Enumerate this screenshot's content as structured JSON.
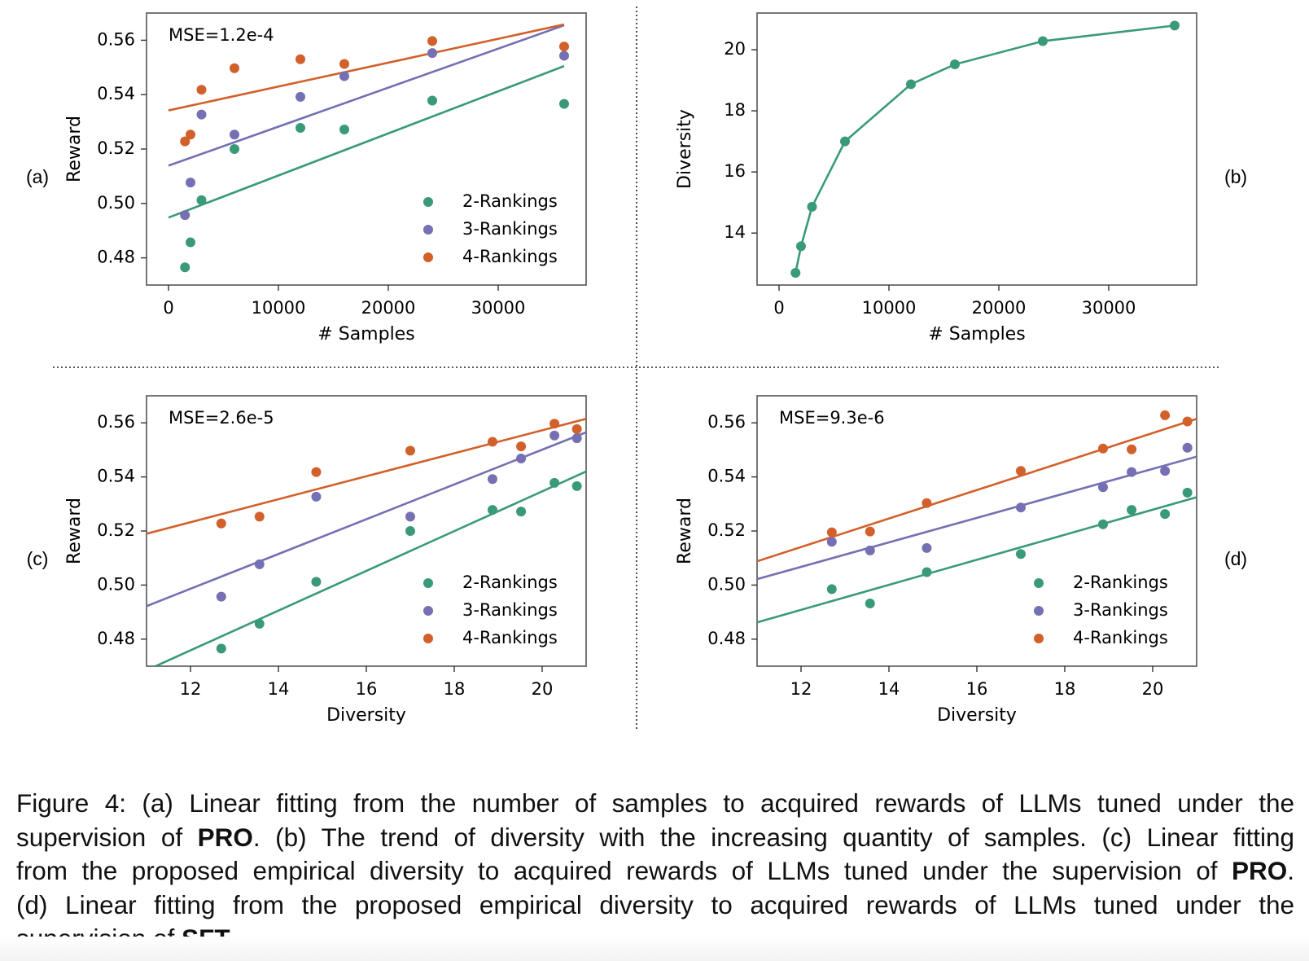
{
  "colors": {
    "green": "#3a9a78",
    "purple": "#7570b3",
    "orange": "#d2602a",
    "frame": "#555555"
  },
  "panel_labels": {
    "a": "(a)",
    "b": "(b)",
    "c": "(c)",
    "d": "(d)"
  },
  "chart_data": [
    {
      "id": "a",
      "type": "scatter",
      "annotation": "MSE=1.2e-4",
      "xlabel": "# Samples",
      "ylabel": "Reward",
      "xlim": [
        -2000,
        38000
      ],
      "ylim": [
        0.47,
        0.57
      ],
      "xticks": [
        0,
        10000,
        20000,
        30000
      ],
      "xtick_labels": [
        "0",
        "10000",
        "20000",
        "30000"
      ],
      "yticks": [
        0.48,
        0.5,
        0.52,
        0.54,
        0.56
      ],
      "ytick_labels": [
        "0.48",
        "0.50",
        "0.52",
        "0.54",
        "0.56"
      ],
      "legend_position": "lower right",
      "series": [
        {
          "name": "2-Rankings",
          "color": "green",
          "x": [
            1500,
            2000,
            3000,
            6000,
            12000,
            16000,
            24000,
            36000
          ],
          "y": [
            0.4765,
            0.4857,
            0.5012,
            0.52,
            0.5278,
            0.5272,
            0.5378,
            0.5366
          ],
          "fit": [
            [
              0,
              0.4948
            ],
            [
              36000,
              0.5505
            ]
          ]
        },
        {
          "name": "3-Rankings",
          "color": "purple",
          "x": [
            1500,
            2000,
            3000,
            6000,
            12000,
            16000,
            24000,
            36000
          ],
          "y": [
            0.4957,
            0.5077,
            0.5327,
            0.5253,
            0.5392,
            0.5468,
            0.5553,
            0.5543
          ],
          "fit": [
            [
              0,
              0.5139
            ],
            [
              36000,
              0.5655
            ]
          ]
        },
        {
          "name": "4-Rankings",
          "color": "orange",
          "x": [
            1500,
            2000,
            3000,
            6000,
            12000,
            16000,
            24000,
            36000
          ],
          "y": [
            0.5228,
            0.5253,
            0.5418,
            0.5497,
            0.553,
            0.5513,
            0.5597,
            0.5577
          ],
          "fit": [
            [
              0,
              0.5342
            ],
            [
              36000,
              0.5658
            ]
          ]
        }
      ]
    },
    {
      "id": "b",
      "type": "line",
      "xlabel": "# Samples",
      "ylabel": "Diversity",
      "xlim": [
        -2000,
        38000
      ],
      "ylim": [
        12.3,
        21.2
      ],
      "xticks": [
        0,
        10000,
        20000,
        30000
      ],
      "xtick_labels": [
        "0",
        "10000",
        "20000",
        "30000"
      ],
      "yticks": [
        14,
        16,
        18,
        20
      ],
      "ytick_labels": [
        "14",
        "16",
        "18",
        "20"
      ],
      "series": [
        {
          "name": "",
          "color": "green",
          "x": [
            1500,
            2000,
            3000,
            6000,
            12000,
            16000,
            24000,
            36000
          ],
          "y": [
            12.7,
            13.57,
            14.86,
            17.0,
            18.87,
            19.52,
            20.28,
            20.79
          ]
        }
      ]
    },
    {
      "id": "c",
      "type": "scatter",
      "annotation": "MSE=2.6e-5",
      "xlabel": "Diversity",
      "ylabel": "Reward",
      "xlim": [
        11,
        21
      ],
      "ylim": [
        0.47,
        0.57
      ],
      "xticks": [
        12,
        14,
        16,
        18,
        20
      ],
      "xtick_labels": [
        "12",
        "14",
        "16",
        "18",
        "20"
      ],
      "yticks": [
        0.48,
        0.5,
        0.52,
        0.54,
        0.56
      ],
      "ytick_labels": [
        "0.48",
        "0.50",
        "0.52",
        "0.54",
        "0.56"
      ],
      "legend_position": "lower right",
      "series": [
        {
          "name": "2-Rankings",
          "color": "green",
          "x": [
            12.7,
            13.57,
            14.86,
            17.0,
            18.87,
            19.52,
            20.28,
            20.79
          ],
          "y": [
            0.4765,
            0.4857,
            0.5012,
            0.52,
            0.5278,
            0.5272,
            0.5378,
            0.5366
          ],
          "fit": [
            [
              11,
              0.4685
            ],
            [
              21,
              0.542
            ]
          ]
        },
        {
          "name": "3-Rankings",
          "color": "purple",
          "x": [
            12.7,
            13.57,
            14.86,
            17.0,
            18.87,
            19.52,
            20.28,
            20.79
          ],
          "y": [
            0.4957,
            0.5077,
            0.5327,
            0.5253,
            0.5392,
            0.5468,
            0.5553,
            0.5543
          ],
          "fit": [
            [
              11,
              0.4922
            ],
            [
              21,
              0.5565
            ]
          ]
        },
        {
          "name": "4-Rankings",
          "color": "orange",
          "x": [
            12.7,
            13.57,
            14.86,
            17.0,
            18.87,
            19.52,
            20.28,
            20.79
          ],
          "y": [
            0.5228,
            0.5253,
            0.5418,
            0.5497,
            0.553,
            0.5513,
            0.5597,
            0.5577
          ],
          "fit": [
            [
              11,
              0.519
            ],
            [
              21,
              0.5615
            ]
          ]
        }
      ]
    },
    {
      "id": "d",
      "type": "scatter",
      "annotation": "MSE=9.3e-6",
      "xlabel": "Diversity",
      "ylabel": "Reward",
      "xlim": [
        11,
        21
      ],
      "ylim": [
        0.47,
        0.57
      ],
      "xticks": [
        12,
        14,
        16,
        18,
        20
      ],
      "xtick_labels": [
        "12",
        "14",
        "16",
        "18",
        "20"
      ],
      "yticks": [
        0.48,
        0.5,
        0.52,
        0.54,
        0.56
      ],
      "ytick_labels": [
        "0.48",
        "0.50",
        "0.52",
        "0.54",
        "0.56"
      ],
      "legend_position": "lower right",
      "series": [
        {
          "name": "2-Rankings",
          "color": "green",
          "x": [
            12.7,
            13.57,
            14.86,
            17.0,
            18.87,
            19.52,
            20.28,
            20.79
          ],
          "y": [
            0.4985,
            0.4932,
            0.5048,
            0.5115,
            0.5225,
            0.5278,
            0.5263,
            0.5342
          ],
          "fit": [
            [
              11,
              0.4862
            ],
            [
              21,
              0.5325
            ]
          ]
        },
        {
          "name": "3-Rankings",
          "color": "purple",
          "x": [
            12.7,
            13.57,
            14.86,
            17.0,
            18.87,
            19.52,
            20.28,
            20.79
          ],
          "y": [
            0.516,
            0.5128,
            0.5137,
            0.5287,
            0.5362,
            0.5418,
            0.5422,
            0.5508
          ],
          "fit": [
            [
              11,
              0.5022
            ],
            [
              21,
              0.5475
            ]
          ]
        },
        {
          "name": "4-Rankings",
          "color": "orange",
          "x": [
            12.7,
            13.57,
            14.86,
            17.0,
            18.87,
            19.52,
            20.28,
            20.79
          ],
          "y": [
            0.5195,
            0.5198,
            0.5303,
            0.5422,
            0.5505,
            0.5502,
            0.5628,
            0.5605
          ],
          "fit": [
            [
              11,
              0.5088
            ],
            [
              21,
              0.5615
            ]
          ]
        }
      ]
    }
  ],
  "caption": {
    "lines": [
      [
        "Figure 4: (a) Linear fitting from the number of samples to acquired rewards of LLMs tuned under the"
      ],
      [
        "supervision of ",
        {
          "b": "PRO"
        },
        ". (b) The trend of diversity with the increasing quantity of samples. (c) Linear fitting"
      ],
      [
        "from the proposed empirical diversity to acquired rewards of LLMs tuned under the supervision of ",
        {
          "b": "PRO"
        },
        "."
      ],
      [
        "(d) Linear fitting from the proposed empirical diversity to acquired rewards of LLMs tuned under the"
      ],
      [
        "supervision of ",
        {
          "b": "SFT"
        },
        "."
      ]
    ]
  }
}
